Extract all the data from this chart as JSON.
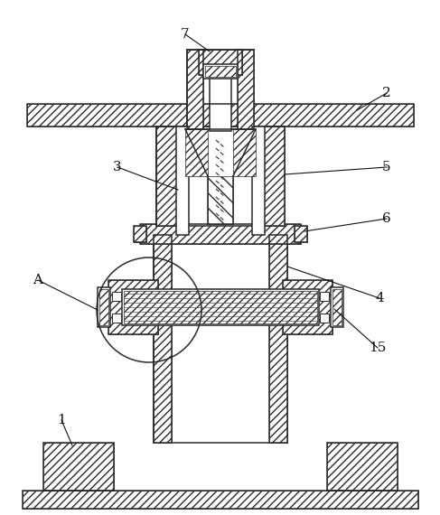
{
  "bg_color": "#ffffff",
  "line_color": "#2a2a2a",
  "lw": 1.1,
  "thin_lw": 0.7,
  "hatch_lw": 0.5
}
